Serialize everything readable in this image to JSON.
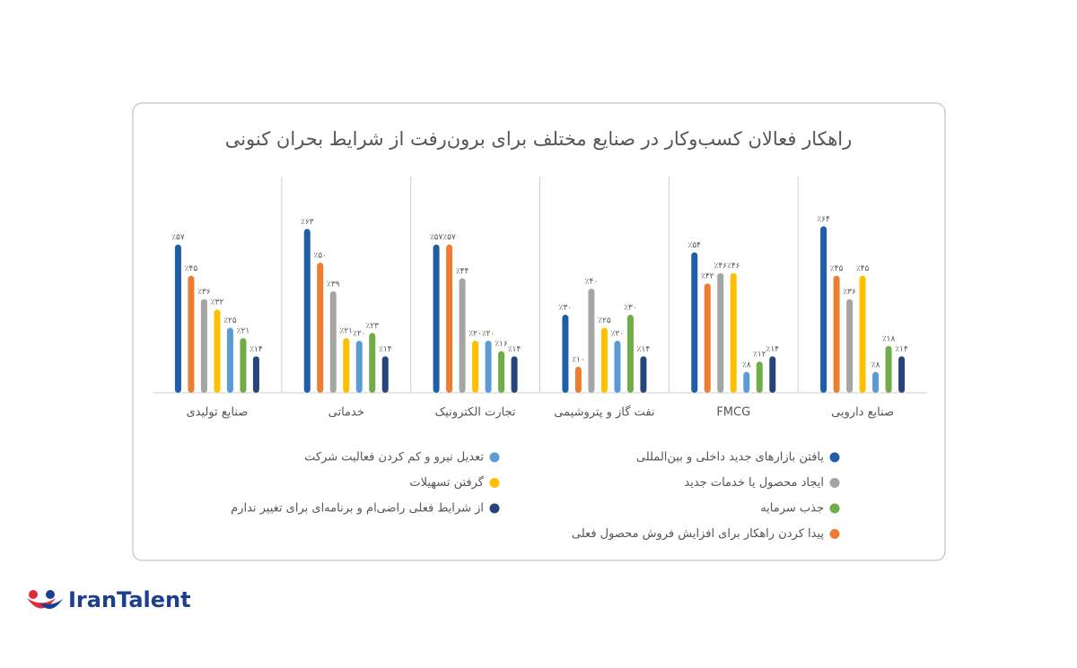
{
  "chart_data": {
    "type": "bar",
    "title": "راهکار فعالان کسب‌وکار در صنایع مختلف برای برون‌رفت از شرایط بحران کنونی",
    "categories": [
      "صنایع تولیدی",
      "خدماتی",
      "تجارت الکترونیک",
      "نفت گاز و پتروشیمی",
      "FMCG",
      "صنایع دارویی"
    ],
    "ylim": [
      0,
      80
    ],
    "series": [
      {
        "name": "یافتن بازارهای جدید داخلی و بین‌المللی",
        "color": "#1f5fa8",
        "values": [
          57,
          63,
          57,
          30,
          54,
          64
        ],
        "value_labels": [
          "٪۵۷",
          "٪۶۳",
          "٪۵۷",
          "٪۳۰",
          "٪۵۴",
          "٪۶۴"
        ]
      },
      {
        "name": "پیدا کردن راهکار برای افزایش فروش محصول فعلی",
        "color": "#ee7d31",
        "values": [
          45,
          50,
          57,
          10,
          42,
          45
        ],
        "value_labels": [
          "٪۴۵",
          "٪۵۰",
          "٪۵۷",
          "٪۱۰",
          "٪۴۲",
          "٪۴۵"
        ]
      },
      {
        "name": "ایجاد محصول یا خدمات جدید",
        "color": "#a5a5a5",
        "values": [
          36,
          39,
          44,
          40,
          46,
          36
        ],
        "value_labels": [
          "٪۳۶",
          "٪۳۹",
          "٪۴۴",
          "٪۴۰",
          "٪۴۶",
          "٪۳۶"
        ]
      },
      {
        "name": "گرفتن تسهیلات",
        "color": "#ffc000",
        "values": [
          32,
          21,
          20,
          25,
          46,
          45
        ],
        "value_labels": [
          "٪۳۲",
          "٪۲۱",
          "٪۲۰",
          "٪۲۵",
          "٪۴۶",
          "٪۴۵"
        ]
      },
      {
        "name": "تعدیل نیرو و کم کردن فعالیت شرکت",
        "color": "#5b9bd5",
        "values": [
          25,
          20,
          20,
          20,
          8,
          8
        ],
        "value_labels": [
          "٪۲۵",
          "٪۲۰",
          "٪۲۰",
          "٪۲۰",
          "٪۸",
          "٪۸"
        ]
      },
      {
        "name": "جذب سرمایه",
        "color": "#70ad47",
        "values": [
          21,
          23,
          16,
          30,
          12,
          18
        ],
        "value_labels": [
          "٪۲۱",
          "٪۲۳",
          "٪۱۶",
          "٪۳۰",
          "٪۱۲",
          "٪۱۸"
        ]
      },
      {
        "name": "از شرایط فعلی راضی‌ام و برنامه‌ای برای تغییر ندارم",
        "color": "#26457a",
        "values": [
          14,
          14,
          14,
          14,
          14,
          14
        ],
        "value_labels": [
          "٪۱۴",
          "٪۱۴",
          "٪۱۴",
          "٪۱۴",
          "٪۱۴",
          "٪۱۴"
        ]
      }
    ]
  },
  "logo": "IranTalent"
}
